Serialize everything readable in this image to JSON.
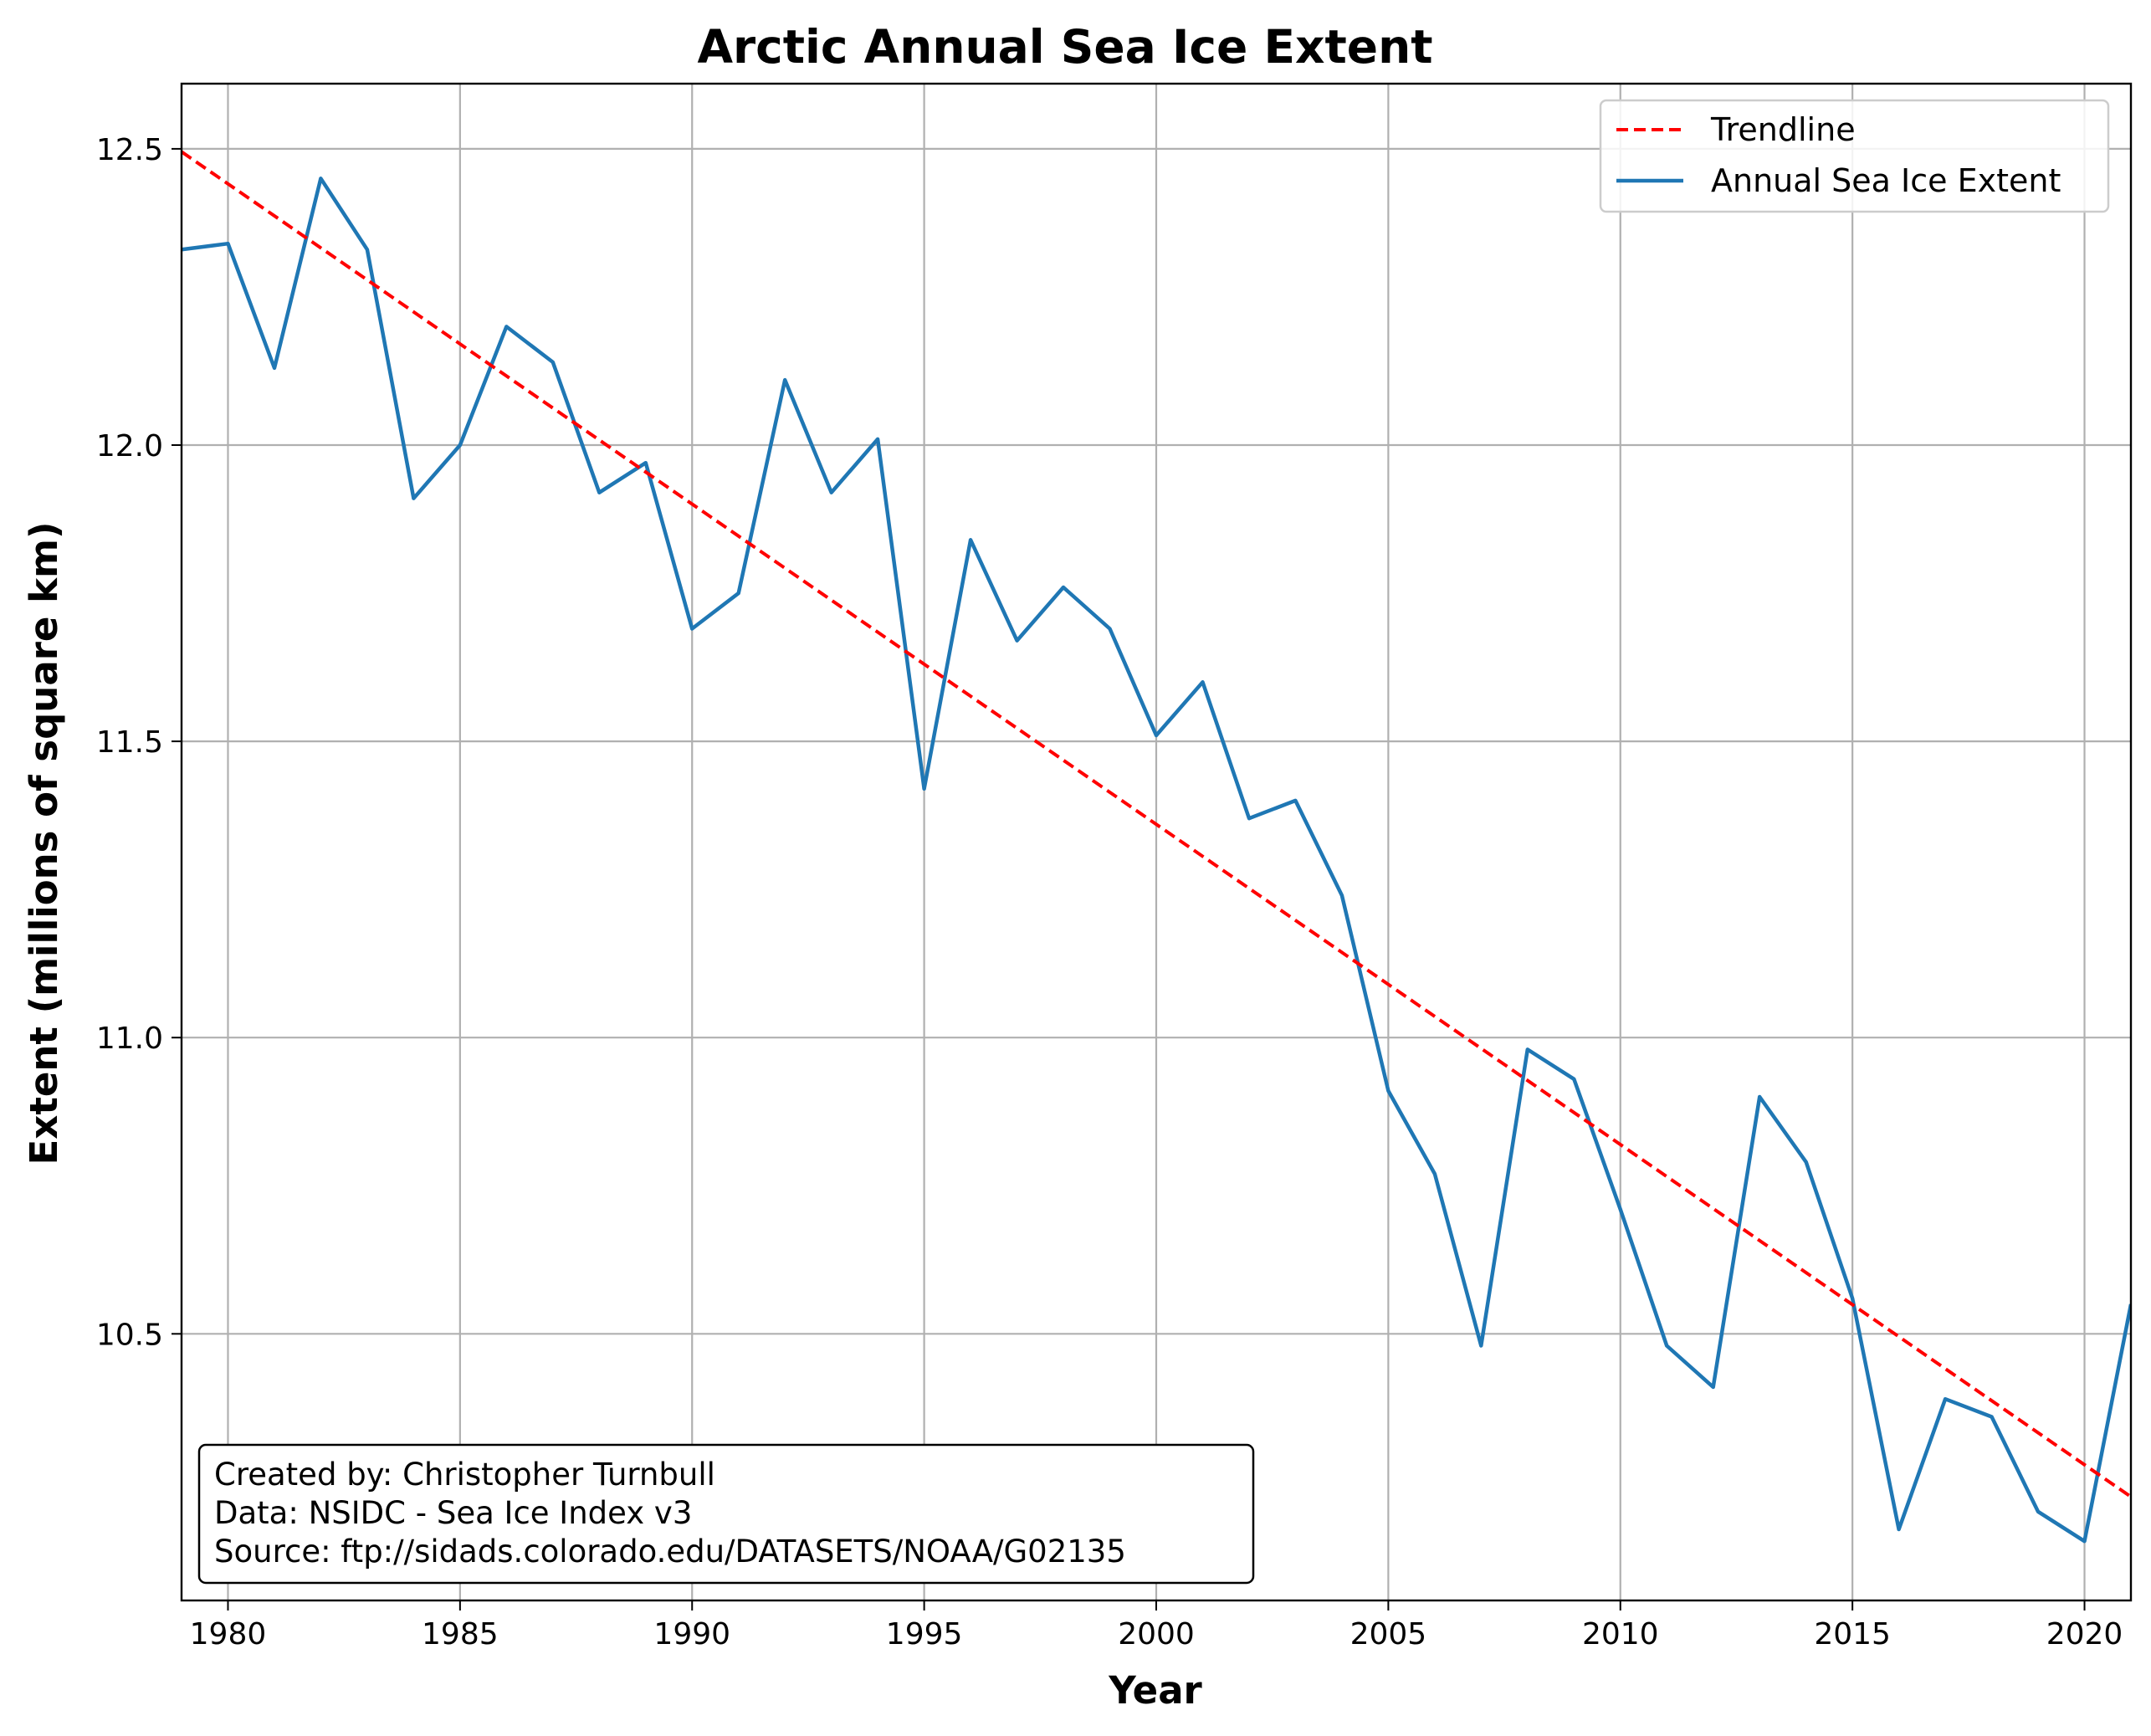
{
  "chart_data": {
    "type": "line",
    "title": "Arctic Annual Sea Ice Extent",
    "xlabel": "Year",
    "ylabel": "Extent (millions of square km)",
    "xlim": [
      1979,
      2021
    ],
    "ylim": [
      10.05,
      12.61
    ],
    "xticks": [
      1980,
      1985,
      1990,
      1995,
      2000,
      2005,
      2010,
      2015,
      2020
    ],
    "yticks": [
      "10.5",
      "11.0",
      "11.5",
      "12.0",
      "12.5"
    ],
    "grid": true,
    "legend_position": "top-right",
    "x": [
      1979,
      1980,
      1981,
      1982,
      1983,
      1984,
      1985,
      1986,
      1987,
      1988,
      1989,
      1990,
      1991,
      1992,
      1993,
      1994,
      1995,
      1996,
      1997,
      1998,
      1999,
      2000,
      2001,
      2002,
      2003,
      2004,
      2005,
      2006,
      2007,
      2008,
      2009,
      2010,
      2011,
      2012,
      2013,
      2014,
      2015,
      2016,
      2017,
      2018,
      2019,
      2020,
      2021
    ],
    "series": [
      {
        "name": "Trendline",
        "style": "dashed",
        "color": "#ff0000",
        "x": [
          1979,
          2021
        ],
        "values": [
          12.495,
          10.225
        ]
      },
      {
        "name": "Annual Sea Ice Extent",
        "style": "solid",
        "color": "#1f77b4",
        "values": [
          12.33,
          12.34,
          12.13,
          12.45,
          12.33,
          11.91,
          12.0,
          12.2,
          12.14,
          11.92,
          11.97,
          11.69,
          11.75,
          12.11,
          11.92,
          12.01,
          11.42,
          11.84,
          11.67,
          11.76,
          11.69,
          11.51,
          11.6,
          11.37,
          11.4,
          11.24,
          10.91,
          10.77,
          10.48,
          10.98,
          10.93,
          10.71,
          10.48,
          10.41,
          10.9,
          10.79,
          10.56,
          10.17,
          10.39,
          10.36,
          10.2,
          10.15,
          10.55
        ]
      }
    ],
    "annotation": [
      "Created by: Christopher Turnbull",
      "Data: NSIDC - Sea Ice Index v3",
      "Source: ftp://sidads.colorado.edu/DATASETS/NOAA/G02135"
    ]
  }
}
